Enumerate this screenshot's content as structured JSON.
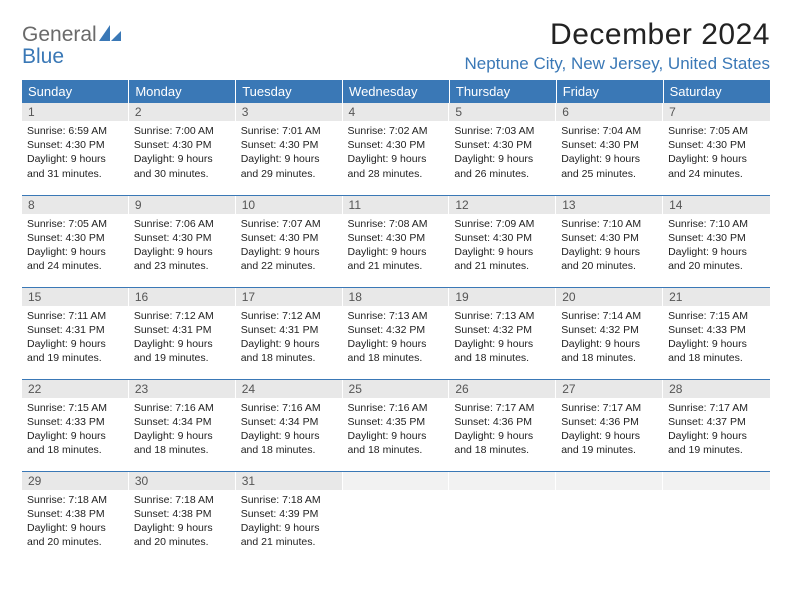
{
  "brand": {
    "word1": "General",
    "word2": "Blue"
  },
  "title": "December 2024",
  "location": "Neptune City, New Jersey, United States",
  "colors": {
    "header_bg": "#3a78b6",
    "header_text": "#ffffff",
    "daynum_bg": "#e8e8e8",
    "border": "#3a78b6",
    "logo_gray": "#6a6a6a",
    "logo_blue": "#3a78b6"
  },
  "weekdays": [
    "Sunday",
    "Monday",
    "Tuesday",
    "Wednesday",
    "Thursday",
    "Friday",
    "Saturday"
  ],
  "weeks": [
    [
      {
        "n": "1",
        "sr": "6:59 AM",
        "ss": "4:30 PM",
        "dh": "9",
        "dm": "31"
      },
      {
        "n": "2",
        "sr": "7:00 AM",
        "ss": "4:30 PM",
        "dh": "9",
        "dm": "30"
      },
      {
        "n": "3",
        "sr": "7:01 AM",
        "ss": "4:30 PM",
        "dh": "9",
        "dm": "29"
      },
      {
        "n": "4",
        "sr": "7:02 AM",
        "ss": "4:30 PM",
        "dh": "9",
        "dm": "28"
      },
      {
        "n": "5",
        "sr": "7:03 AM",
        "ss": "4:30 PM",
        "dh": "9",
        "dm": "26"
      },
      {
        "n": "6",
        "sr": "7:04 AM",
        "ss": "4:30 PM",
        "dh": "9",
        "dm": "25"
      },
      {
        "n": "7",
        "sr": "7:05 AM",
        "ss": "4:30 PM",
        "dh": "9",
        "dm": "24"
      }
    ],
    [
      {
        "n": "8",
        "sr": "7:05 AM",
        "ss": "4:30 PM",
        "dh": "9",
        "dm": "24"
      },
      {
        "n": "9",
        "sr": "7:06 AM",
        "ss": "4:30 PM",
        "dh": "9",
        "dm": "23"
      },
      {
        "n": "10",
        "sr": "7:07 AM",
        "ss": "4:30 PM",
        "dh": "9",
        "dm": "22"
      },
      {
        "n": "11",
        "sr": "7:08 AM",
        "ss": "4:30 PM",
        "dh": "9",
        "dm": "21"
      },
      {
        "n": "12",
        "sr": "7:09 AM",
        "ss": "4:30 PM",
        "dh": "9",
        "dm": "21"
      },
      {
        "n": "13",
        "sr": "7:10 AM",
        "ss": "4:30 PM",
        "dh": "9",
        "dm": "20"
      },
      {
        "n": "14",
        "sr": "7:10 AM",
        "ss": "4:30 PM",
        "dh": "9",
        "dm": "20"
      }
    ],
    [
      {
        "n": "15",
        "sr": "7:11 AM",
        "ss": "4:31 PM",
        "dh": "9",
        "dm": "19"
      },
      {
        "n": "16",
        "sr": "7:12 AM",
        "ss": "4:31 PM",
        "dh": "9",
        "dm": "19"
      },
      {
        "n": "17",
        "sr": "7:12 AM",
        "ss": "4:31 PM",
        "dh": "9",
        "dm": "18"
      },
      {
        "n": "18",
        "sr": "7:13 AM",
        "ss": "4:32 PM",
        "dh": "9",
        "dm": "18"
      },
      {
        "n": "19",
        "sr": "7:13 AM",
        "ss": "4:32 PM",
        "dh": "9",
        "dm": "18"
      },
      {
        "n": "20",
        "sr": "7:14 AM",
        "ss": "4:32 PM",
        "dh": "9",
        "dm": "18"
      },
      {
        "n": "21",
        "sr": "7:15 AM",
        "ss": "4:33 PM",
        "dh": "9",
        "dm": "18"
      }
    ],
    [
      {
        "n": "22",
        "sr": "7:15 AM",
        "ss": "4:33 PM",
        "dh": "9",
        "dm": "18"
      },
      {
        "n": "23",
        "sr": "7:16 AM",
        "ss": "4:34 PM",
        "dh": "9",
        "dm": "18"
      },
      {
        "n": "24",
        "sr": "7:16 AM",
        "ss": "4:34 PM",
        "dh": "9",
        "dm": "18"
      },
      {
        "n": "25",
        "sr": "7:16 AM",
        "ss": "4:35 PM",
        "dh": "9",
        "dm": "18"
      },
      {
        "n": "26",
        "sr": "7:17 AM",
        "ss": "4:36 PM",
        "dh": "9",
        "dm": "18"
      },
      {
        "n": "27",
        "sr": "7:17 AM",
        "ss": "4:36 PM",
        "dh": "9",
        "dm": "19"
      },
      {
        "n": "28",
        "sr": "7:17 AM",
        "ss": "4:37 PM",
        "dh": "9",
        "dm": "19"
      }
    ],
    [
      {
        "n": "29",
        "sr": "7:18 AM",
        "ss": "4:38 PM",
        "dh": "9",
        "dm": "20"
      },
      {
        "n": "30",
        "sr": "7:18 AM",
        "ss": "4:38 PM",
        "dh": "9",
        "dm": "20"
      },
      {
        "n": "31",
        "sr": "7:18 AM",
        "ss": "4:39 PM",
        "dh": "9",
        "dm": "21"
      },
      null,
      null,
      null,
      null
    ]
  ],
  "labels": {
    "sunrise": "Sunrise:",
    "sunset": "Sunset:",
    "daylight": "Daylight:",
    "hours": "hours",
    "and": "and",
    "minutes": "minutes."
  }
}
